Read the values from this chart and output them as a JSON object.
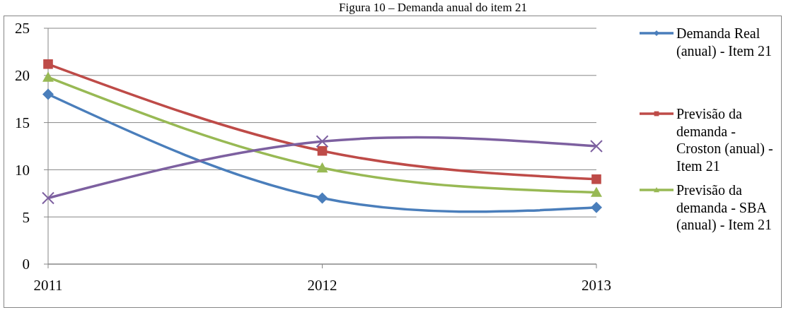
{
  "chart_data": {
    "type": "line",
    "title": "Figura 10 – Demanda anual do item 21",
    "categories": [
      "2011",
      "2012",
      "2013"
    ],
    "series": [
      {
        "name": "Demanda Real (anual) - Item 21",
        "color": "#4a7ebb",
        "marker": "diamond",
        "values": [
          18,
          7,
          6
        ]
      },
      {
        "name": "Previsão da demanda - Croston (anual) - Item 21",
        "color": "#be4b48",
        "marker": "square",
        "values": [
          21.2,
          12,
          9
        ]
      },
      {
        "name": "Previsão da demanda - SBA (anual) - Item 21",
        "color": "#98b954",
        "marker": "triangle",
        "values": [
          19.8,
          10.2,
          7.6
        ]
      },
      {
        "color": "#7d60a0",
        "marker": "cross",
        "values": [
          7,
          13,
          12.5
        ]
      }
    ],
    "ylim": [
      0,
      25
    ],
    "yticks": [
      0,
      5,
      10,
      15,
      20,
      25
    ],
    "grid": "y",
    "legend": "right",
    "line_style": "solid"
  }
}
